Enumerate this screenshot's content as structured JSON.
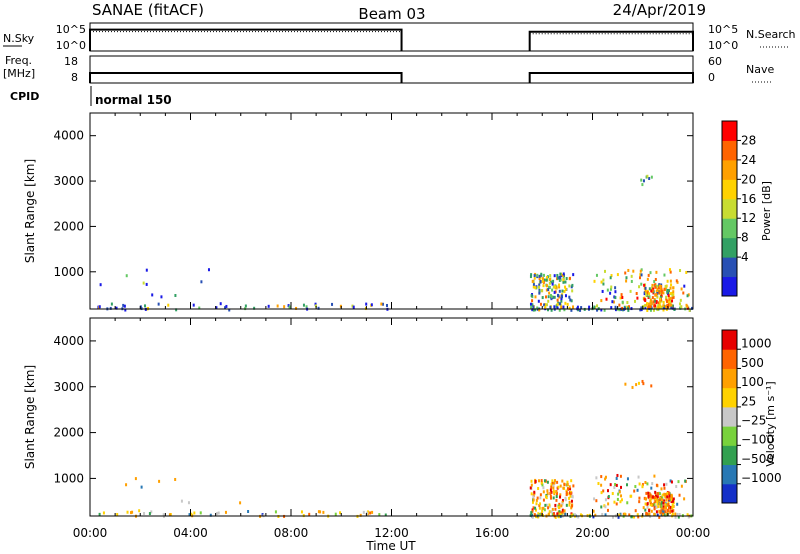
{
  "header": {
    "station": "SANAE (fitACF)",
    "beam": "Beam 03",
    "date": "24/Apr/2019"
  },
  "chart_data": [
    {
      "type": "line",
      "panel": "noise",
      "left_label": "N.Sky",
      "right_label": "N.Search",
      "left_ticks": [
        "10^5",
        "10^0"
      ],
      "right_ticks": [
        "10^5",
        "10^0"
      ],
      "segments": [
        {
          "start": 0.0,
          "end": 12.4,
          "level": 0.82
        },
        {
          "start": 17.5,
          "end": 24.0,
          "level": 0.74
        }
      ]
    },
    {
      "type": "line",
      "panel": "frequency",
      "left_label_top": "Freq.",
      "left_label_bottom": "[MHz]",
      "right_label": "Nave",
      "left_ticks": [
        "18",
        "8"
      ],
      "right_ticks": [
        "60",
        "0"
      ],
      "series": [
        {
          "name": "Freq.",
          "segments": [
            {
              "start": 0.0,
              "end": 12.4,
              "value": 12
            },
            {
              "start": 17.5,
              "end": 24.0,
              "value": 12
            }
          ]
        },
        {
          "name": "Nave",
          "segments": [
            {
              "start": 0.0,
              "end": 12.4,
              "value": 23
            },
            {
              "start": 17.5,
              "end": 24.0,
              "value": 23
            }
          ]
        }
      ]
    },
    {
      "type": "text",
      "panel": "cpid",
      "label": "CPID",
      "mode": "normal 150"
    },
    {
      "type": "heatmap",
      "panel": "power",
      "ylabel": "Slant Range [km]",
      "yticks": [
        "4000",
        "3000",
        "2000",
        "1000"
      ],
      "ylim": [
        180,
        4500
      ],
      "xlim": [
        0,
        24
      ],
      "colorbar_label": "Power [dB]",
      "colorbar_ticks": [
        "28",
        "24",
        "20",
        "16",
        "12",
        "8",
        "4"
      ],
      "colors": [
        "#1a1ae6",
        "#2850b4",
        "#32a064",
        "#64c864",
        "#c8dc32",
        "#ffd200",
        "#ffa000",
        "#ff6400",
        "#ff0000"
      ],
      "clusters": [
        {
          "t0": 0.0,
          "t1": 12.4,
          "r0": 190,
          "r1": 330,
          "n": 55,
          "seed": 3,
          "weights": [
            5,
            4,
            2,
            1,
            1,
            2,
            1,
            0,
            0
          ]
        },
        {
          "t0": 0.0,
          "t1": 5.0,
          "r0": 400,
          "r1": 1100,
          "n": 10,
          "seed": 7,
          "weights": [
            3,
            3,
            1,
            1,
            1,
            2,
            1,
            0,
            0
          ]
        },
        {
          "t0": 17.5,
          "t1": 19.2,
          "r0": 250,
          "r1": 1000,
          "n": 150,
          "seed": 11,
          "weights": [
            2,
            3,
            4,
            3,
            3,
            3,
            2,
            1,
            0
          ]
        },
        {
          "t0": 17.5,
          "t1": 24.0,
          "r0": 180,
          "r1": 260,
          "n": 80,
          "seed": 13,
          "weights": [
            4,
            4,
            3,
            2,
            1,
            1,
            1,
            0,
            0
          ]
        },
        {
          "t0": 20.0,
          "t1": 23.8,
          "r0": 200,
          "r1": 1100,
          "n": 95,
          "seed": 17,
          "weights": [
            1,
            1,
            2,
            2,
            2,
            3,
            4,
            3,
            2
          ]
        },
        {
          "t0": 22.0,
          "t1": 23.2,
          "r0": 250,
          "r1": 750,
          "n": 140,
          "seed": 19,
          "weights": [
            0,
            1,
            1,
            1,
            2,
            3,
            5,
            5,
            3
          ]
        },
        {
          "t0": 21.2,
          "t1": 22.4,
          "r0": 2950,
          "r1": 3150,
          "n": 7,
          "seed": 23,
          "weights": [
            0,
            1,
            2,
            3,
            1,
            0,
            0,
            0,
            0
          ]
        }
      ]
    },
    {
      "type": "heatmap",
      "panel": "velocity",
      "ylabel": "Slant Range [km]",
      "yticks": [
        "4000",
        "3000",
        "2000",
        "1000"
      ],
      "ylim": [
        180,
        4500
      ],
      "xlim": [
        0,
        24
      ],
      "xlabel": "Time UT",
      "xticks": [
        "00:00",
        "04:00",
        "08:00",
        "12:00",
        "16:00",
        "20:00",
        "00:00"
      ],
      "colorbar_label": "Velocity [m s⁻¹]",
      "colorbar_ticks": [
        "1000",
        "500",
        "100",
        "25",
        "−25",
        "−100",
        "−500",
        "−1000"
      ],
      "colors": [
        "#1430c8",
        "#2878b4",
        "#32a050",
        "#78d23c",
        "#c8c8c8",
        "#ffd200",
        "#ffa000",
        "#ff6400",
        "#e60000"
      ],
      "clusters": [
        {
          "t0": 0.0,
          "t1": 12.4,
          "r0": 190,
          "r1": 330,
          "n": 50,
          "seed": 5,
          "weights": [
            1,
            1,
            1,
            1,
            2,
            4,
            4,
            1,
            0
          ]
        },
        {
          "t0": 0.0,
          "t1": 6.0,
          "r0": 400,
          "r1": 1100,
          "n": 8,
          "seed": 9,
          "weights": [
            1,
            1,
            1,
            1,
            1,
            3,
            3,
            1,
            0
          ]
        },
        {
          "t0": 17.5,
          "t1": 19.2,
          "r0": 250,
          "r1": 1000,
          "n": 150,
          "seed": 29,
          "weights": [
            0,
            0,
            1,
            1,
            2,
            4,
            5,
            3,
            2
          ]
        },
        {
          "t0": 17.5,
          "t1": 24.0,
          "r0": 180,
          "r1": 260,
          "n": 80,
          "seed": 31,
          "weights": [
            1,
            1,
            2,
            2,
            2,
            3,
            2,
            1,
            0
          ]
        },
        {
          "t0": 20.0,
          "t1": 23.8,
          "r0": 200,
          "r1": 1100,
          "n": 95,
          "seed": 37,
          "weights": [
            0,
            1,
            2,
            2,
            2,
            3,
            4,
            3,
            2
          ]
        },
        {
          "t0": 22.0,
          "t1": 23.2,
          "r0": 250,
          "r1": 750,
          "n": 140,
          "seed": 41,
          "weights": [
            0,
            1,
            1,
            1,
            1,
            3,
            5,
            5,
            4
          ]
        },
        {
          "t0": 21.2,
          "t1": 22.4,
          "r0": 2950,
          "r1": 3150,
          "n": 7,
          "seed": 43,
          "weights": [
            0,
            0,
            0,
            0,
            0,
            1,
            3,
            2,
            0
          ]
        }
      ]
    }
  ]
}
